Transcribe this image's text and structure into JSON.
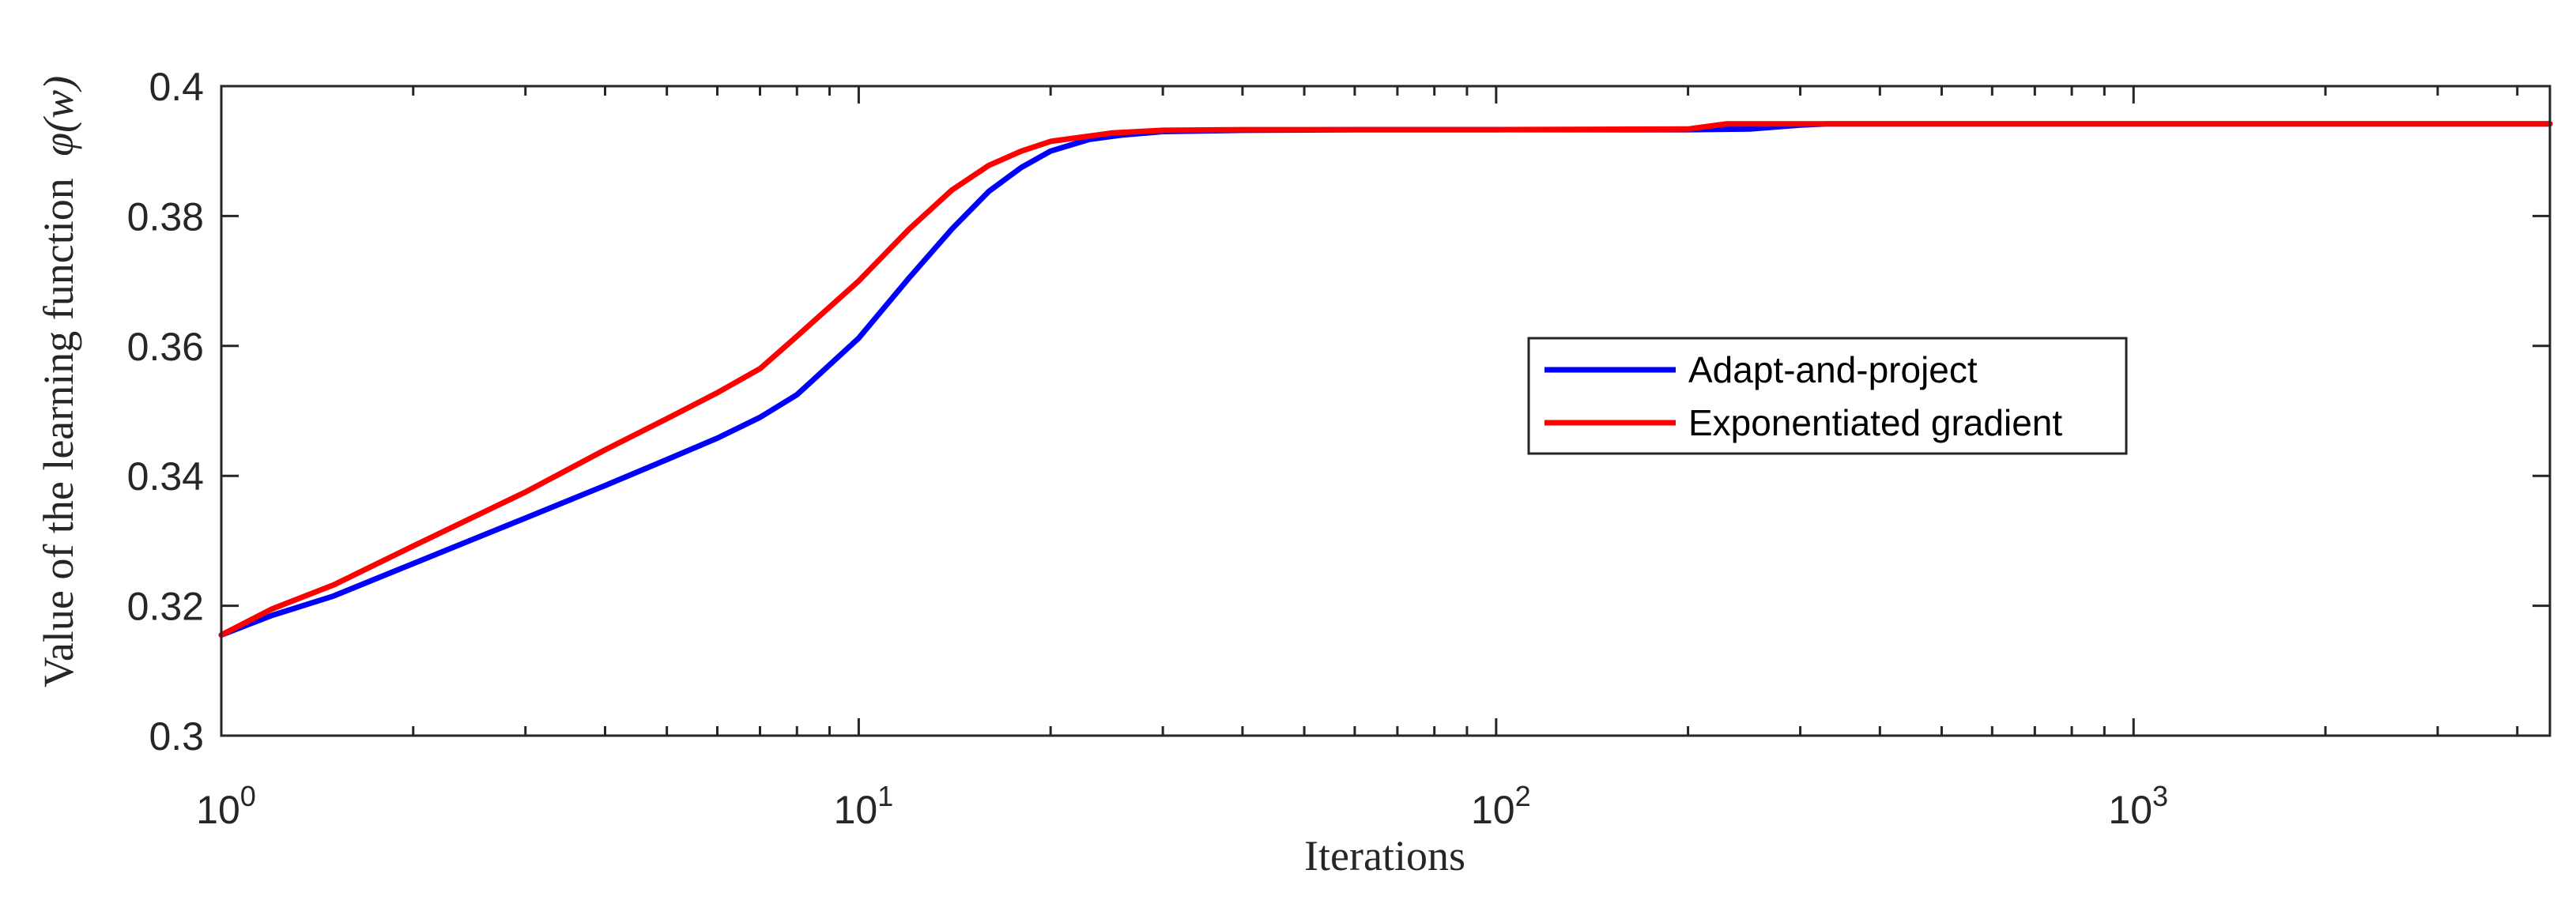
{
  "chart_data": {
    "type": "line",
    "x_scale": "log",
    "xlabel": "Iterations",
    "ylabel_text": "Value of the learning function",
    "ylabel_symbol": "φ(w)",
    "xlim": [
      1,
      4500
    ],
    "ylim": [
      0.3,
      0.4
    ],
    "x_ticks": [
      {
        "base": "10",
        "exp": "0",
        "value": 1
      },
      {
        "base": "10",
        "exp": "1",
        "value": 10
      },
      {
        "base": "10",
        "exp": "2",
        "value": 100
      },
      {
        "base": "10",
        "exp": "3",
        "value": 1000
      }
    ],
    "y_ticks": [
      {
        "label": "0.3",
        "value": 0.3
      },
      {
        "label": "0.32",
        "value": 0.32
      },
      {
        "label": "0.34",
        "value": 0.34
      },
      {
        "label": "0.36",
        "value": 0.36
      },
      {
        "label": "0.38",
        "value": 0.38
      },
      {
        "label": "0.4",
        "value": 0.4
      }
    ],
    "legend_position": "center-right",
    "series": [
      {
        "name": "Adapt-and-project",
        "color": "#0000ff",
        "points": [
          [
            1,
            0.3155
          ],
          [
            1.2,
            0.3185
          ],
          [
            1.5,
            0.3215
          ],
          [
            2,
            0.3265
          ],
          [
            3,
            0.3335
          ],
          [
            4,
            0.3385
          ],
          [
            5,
            0.3425
          ],
          [
            6,
            0.3458
          ],
          [
            7,
            0.349
          ],
          [
            8,
            0.3525
          ],
          [
            10,
            0.3612
          ],
          [
            12,
            0.3705
          ],
          [
            14,
            0.378
          ],
          [
            16,
            0.3838
          ],
          [
            18,
            0.3875
          ],
          [
            20,
            0.39
          ],
          [
            23,
            0.3918
          ],
          [
            26,
            0.3925
          ],
          [
            30,
            0.393
          ],
          [
            40,
            0.3932
          ],
          [
            60,
            0.3933
          ],
          [
            100,
            0.3933
          ],
          [
            200,
            0.3933
          ],
          [
            250,
            0.3934
          ],
          [
            300,
            0.394
          ],
          [
            330,
            0.3942
          ],
          [
            500,
            0.3942
          ],
          [
            1000,
            0.3942
          ],
          [
            2000,
            0.3942
          ],
          [
            4500,
            0.3942
          ]
        ]
      },
      {
        "name": "Exponentiated gradient",
        "color": "#ff0000",
        "points": [
          [
            1,
            0.3155
          ],
          [
            1.2,
            0.3195
          ],
          [
            1.5,
            0.3232
          ],
          [
            2,
            0.3292
          ],
          [
            3,
            0.3375
          ],
          [
            4,
            0.344
          ],
          [
            5,
            0.3488
          ],
          [
            6,
            0.3528
          ],
          [
            7,
            0.3565
          ],
          [
            8,
            0.3615
          ],
          [
            10,
            0.37
          ],
          [
            12,
            0.378
          ],
          [
            14,
            0.384
          ],
          [
            16,
            0.3878
          ],
          [
            18,
            0.39
          ],
          [
            20,
            0.3915
          ],
          [
            25,
            0.3928
          ],
          [
            30,
            0.3932
          ],
          [
            40,
            0.3933
          ],
          [
            100,
            0.3933
          ],
          [
            200,
            0.3934
          ],
          [
            230,
            0.3942
          ],
          [
            500,
            0.3942
          ],
          [
            1000,
            0.3942
          ],
          [
            2000,
            0.3942
          ],
          [
            4500,
            0.3942
          ]
        ]
      }
    ]
  }
}
